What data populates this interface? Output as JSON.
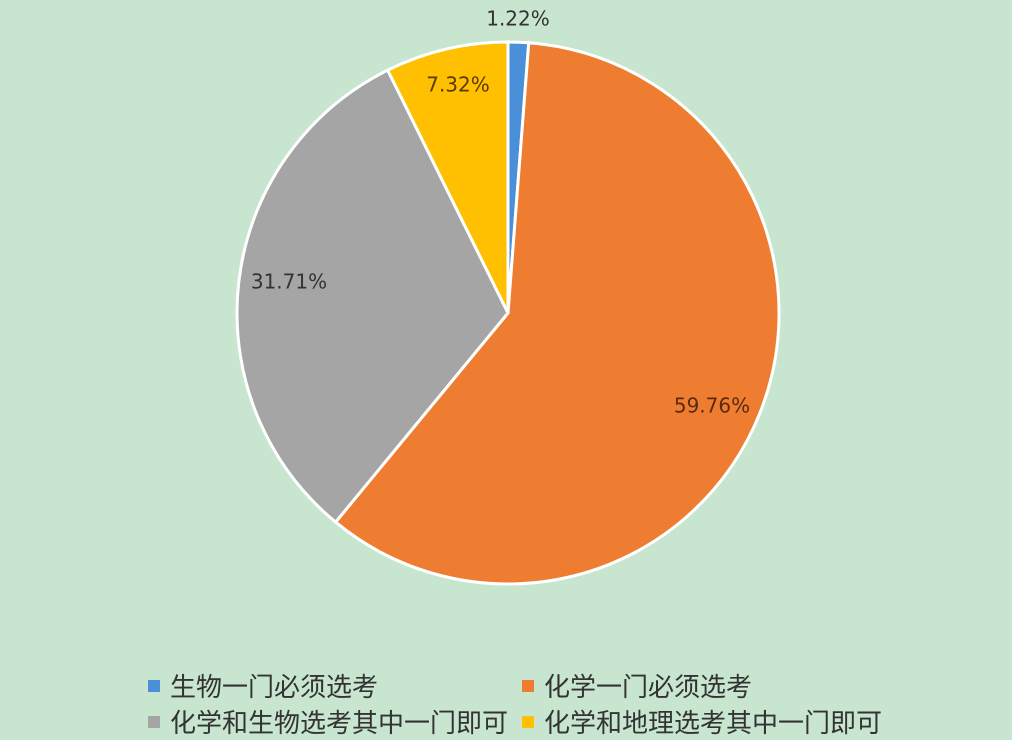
{
  "chart_data": {
    "type": "pie",
    "title": "",
    "start_angle_deg": 0,
    "direction": "clockwise",
    "slices": [
      {
        "label": "生物一门必须选考",
        "value": 1.22,
        "display": "1.22%",
        "color": "#4a90d9"
      },
      {
        "label": "化学一门必须选考",
        "value": 59.76,
        "display": "59.76%",
        "color": "#ee7d31"
      },
      {
        "label": "化学和生物选考其中一门即可",
        "value": 31.71,
        "display": "31.71%",
        "color": "#a5a5a5"
      },
      {
        "label": "化学和地理选考其中一门即可",
        "value": 7.32,
        "display": "7.32%",
        "color": "#fec000"
      }
    ],
    "legend_position": "bottom"
  },
  "legend": {
    "items": [
      {
        "label": "生物一门必须选考",
        "color": "#4a90d9"
      },
      {
        "label": "化学一门必须选考",
        "color": "#ee7d31"
      },
      {
        "label": "化学和生物选考其中一门即可",
        "color": "#a5a5a5"
      },
      {
        "label": "化学和地理选考其中一门即可",
        "color": "#fec000"
      }
    ]
  },
  "background": "#c8e6cf"
}
